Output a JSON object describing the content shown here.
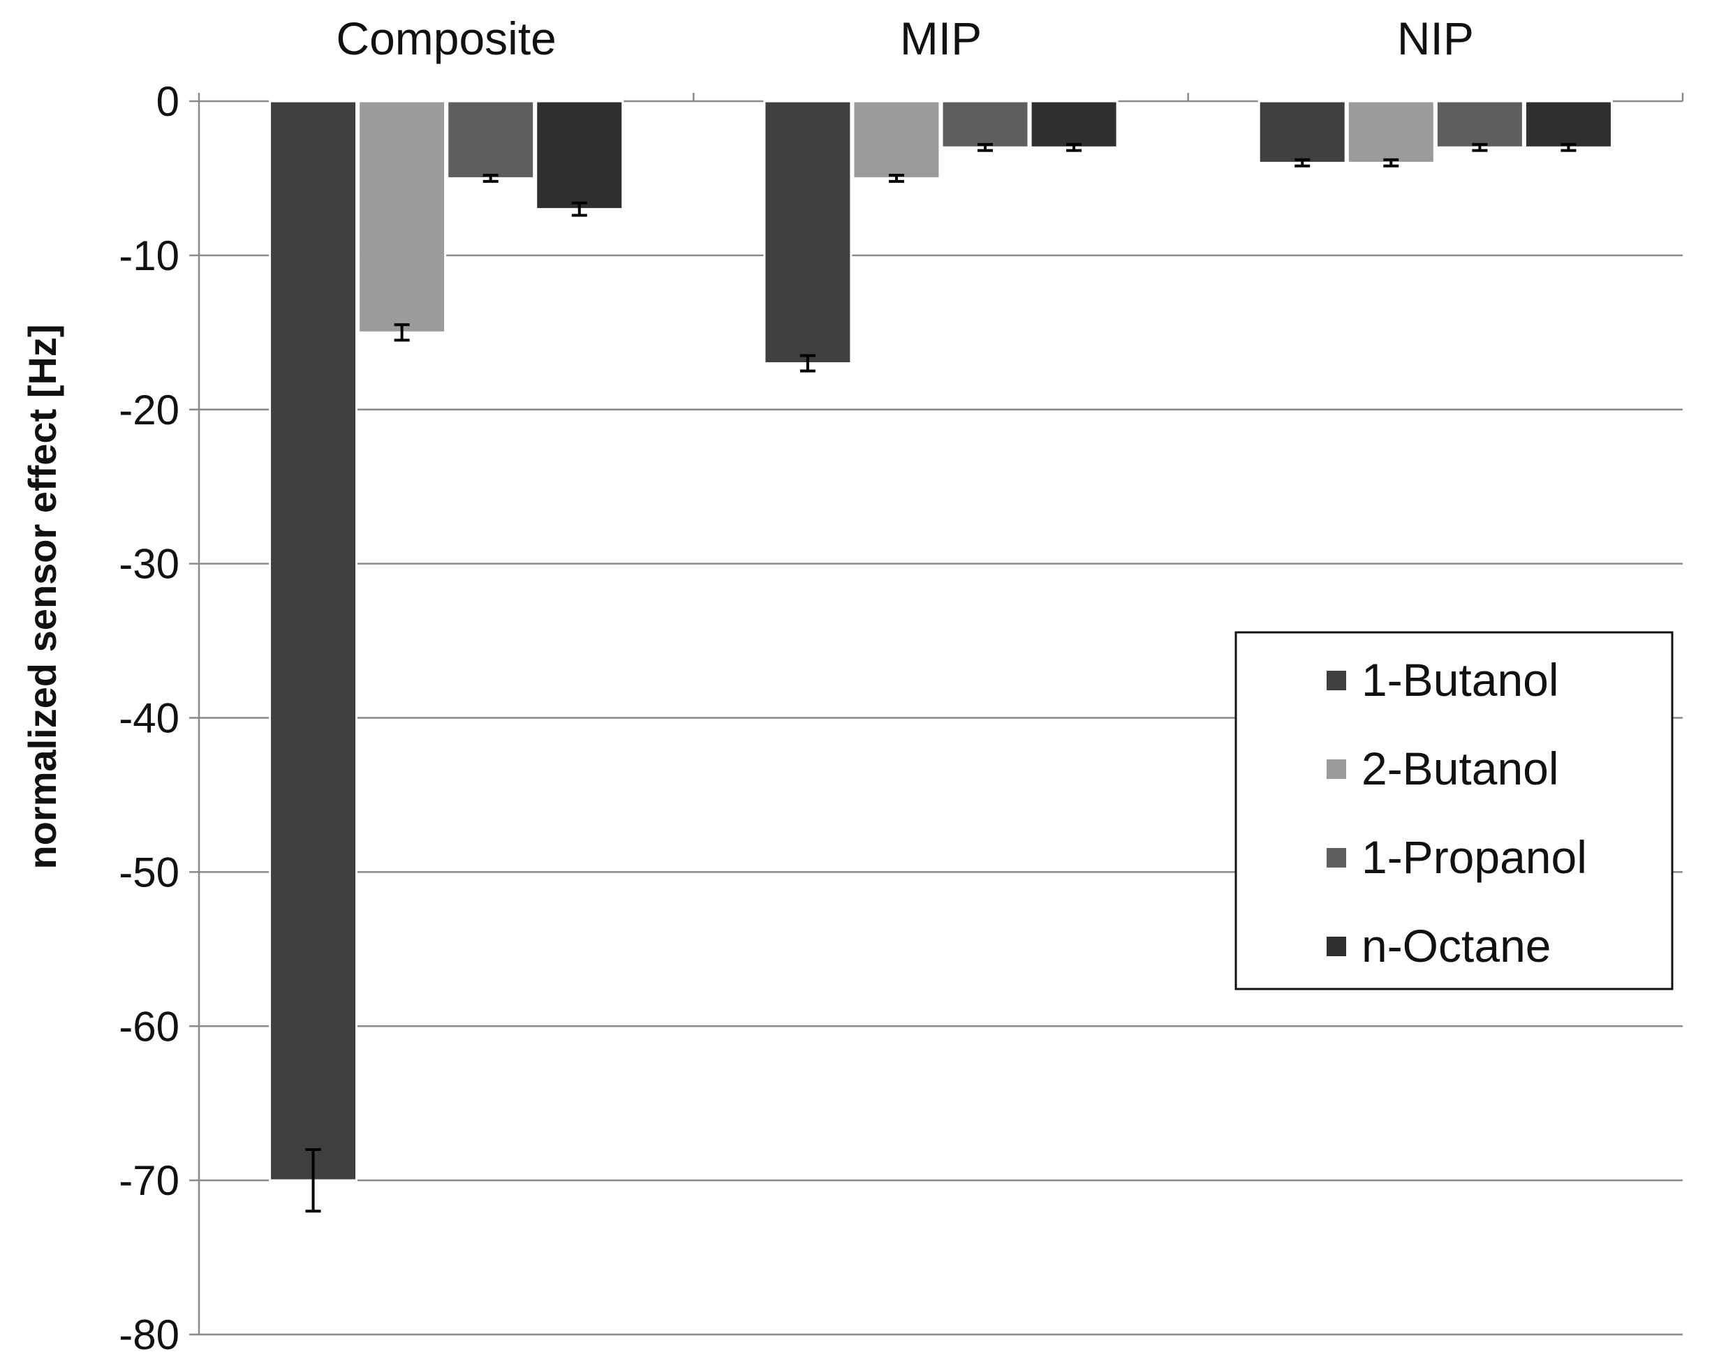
{
  "chart_data": {
    "type": "bar",
    "title": "",
    "xlabel": "",
    "ylabel": "normalized sensor effect [Hz]",
    "categories": [
      "Composite",
      "MIP",
      "NIP"
    ],
    "category_axis_position": "top",
    "ylim": [
      -80,
      0
    ],
    "yticks": [
      0,
      -10,
      -20,
      -30,
      -40,
      -50,
      -60,
      -70,
      -80
    ],
    "ytick_labels": [
      "0",
      "-10",
      "-20",
      "-30",
      "-40",
      "-50",
      "-60",
      "-70",
      "-80"
    ],
    "grid": true,
    "legend_position": "right",
    "series": [
      {
        "name": "1-Butanol",
        "color": "#3f3f3f",
        "values": [
          -70,
          -17,
          -4
        ],
        "errors": [
          2,
          0.5,
          0.2
        ]
      },
      {
        "name": "2-Butanol",
        "color": "#9b9b9b",
        "values": [
          -15,
          -5,
          -4
        ],
        "errors": [
          0.5,
          0.2,
          0.2
        ]
      },
      {
        "name": "1-Propanol",
        "color": "#5e5e5e",
        "values": [
          -5,
          -3,
          -3
        ],
        "errors": [
          0.2,
          0.2,
          0.2
        ]
      },
      {
        "name": "n-Octane",
        "color": "#2f2f2f",
        "values": [
          -7,
          -3,
          -3
        ],
        "errors": [
          0.4,
          0.2,
          0.2
        ]
      }
    ]
  }
}
